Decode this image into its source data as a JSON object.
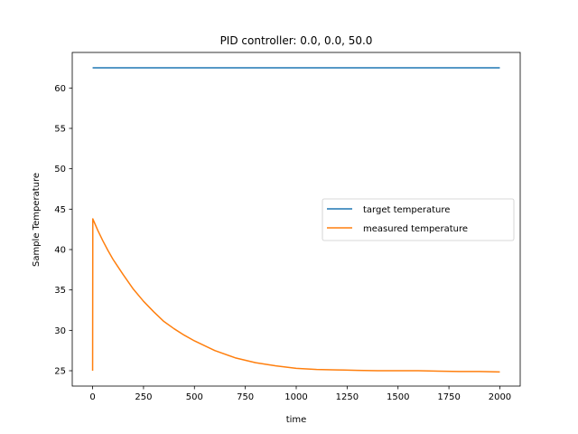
{
  "chart_data": {
    "type": "line",
    "title": "PID controller: 0.0, 0.0, 50.0",
    "xlabel": "time",
    "ylabel": "Sample Temperature",
    "xlim": [
      -100,
      2100
    ],
    "ylim": [
      23.1,
      64.4
    ],
    "xticks": [
      0,
      250,
      500,
      750,
      1000,
      1250,
      1500,
      1750,
      2000
    ],
    "yticks": [
      25,
      30,
      35,
      40,
      45,
      50,
      55,
      60
    ],
    "grid": false,
    "legend_position": "center-right",
    "series": [
      {
        "name": "target temperature",
        "color": "#1f77b4",
        "x": [
          0,
          2000
        ],
        "y": [
          62.5,
          62.5
        ]
      },
      {
        "name": "measured temperature",
        "color": "#ff7f0e",
        "x": [
          0,
          1,
          25,
          50,
          75,
          100,
          150,
          200,
          250,
          300,
          350,
          400,
          450,
          500,
          600,
          700,
          800,
          900,
          1000,
          1100,
          1200,
          1300,
          1400,
          1500,
          1600,
          1700,
          1800,
          1900,
          2000
        ],
        "y": [
          25.0,
          43.8,
          42.4,
          41.1,
          39.9,
          38.8,
          36.9,
          35.1,
          33.6,
          32.3,
          31.1,
          30.2,
          29.4,
          28.7,
          27.5,
          26.6,
          26.0,
          25.6,
          25.3,
          25.15,
          25.1,
          25.05,
          25.0,
          25.0,
          25.0,
          24.95,
          24.9,
          24.9,
          24.85
        ]
      }
    ]
  }
}
